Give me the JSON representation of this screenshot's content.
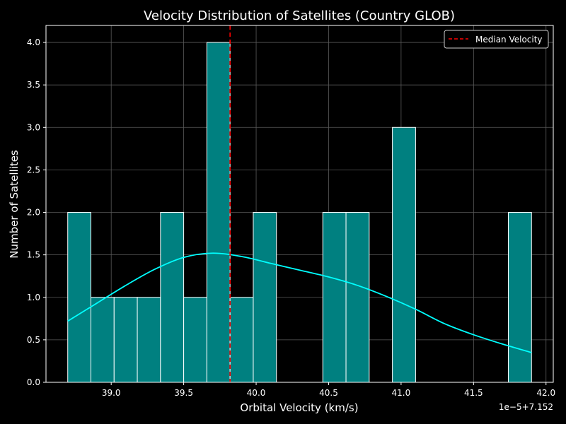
{
  "chart_data": {
    "type": "bar",
    "title": "Velocity Distribution of Satellites (Country GLOB)",
    "xlabel": "Orbital Velocity (km/s)",
    "ylabel": "Number of Satellites",
    "offset_text": "1e−5+7.152",
    "xlim": [
      38.55,
      42.05
    ],
    "ylim": [
      0,
      4.2
    ],
    "x_ticks": [
      "39.0",
      "39.5",
      "40.0",
      "40.5",
      "41.0",
      "41.5",
      "42.0"
    ],
    "y_ticks": [
      "0.0",
      "0.5",
      "1.0",
      "1.5",
      "2.0",
      "2.5",
      "3.0",
      "3.5",
      "4.0"
    ],
    "grid": true,
    "colors": {
      "background": "#000000",
      "bar_fill": "#008080",
      "bar_edge": "#ffffff",
      "kde": "#00ffff",
      "median": "#ff0000",
      "grid": "#5a5a5a"
    },
    "bins": [
      {
        "x0": 38.7,
        "x1": 38.86,
        "count": 2
      },
      {
        "x0": 38.86,
        "x1": 39.02,
        "count": 1
      },
      {
        "x0": 39.02,
        "x1": 39.18,
        "count": 1
      },
      {
        "x0": 39.18,
        "x1": 39.34,
        "count": 1
      },
      {
        "x0": 39.34,
        "x1": 39.5,
        "count": 2
      },
      {
        "x0": 39.5,
        "x1": 39.66,
        "count": 1
      },
      {
        "x0": 39.66,
        "x1": 39.82,
        "count": 4
      },
      {
        "x0": 39.82,
        "x1": 39.98,
        "count": 1
      },
      {
        "x0": 39.98,
        "x1": 40.14,
        "count": 2
      },
      {
        "x0": 40.14,
        "x1": 40.3,
        "count": 0
      },
      {
        "x0": 40.3,
        "x1": 40.46,
        "count": 0
      },
      {
        "x0": 40.46,
        "x1": 40.62,
        "count": 2
      },
      {
        "x0": 40.62,
        "x1": 40.78,
        "count": 2
      },
      {
        "x0": 40.78,
        "x1": 40.94,
        "count": 0
      },
      {
        "x0": 40.94,
        "x1": 41.1,
        "count": 3
      },
      {
        "x0": 41.1,
        "x1": 41.26,
        "count": 0
      },
      {
        "x0": 41.26,
        "x1": 41.42,
        "count": 0
      },
      {
        "x0": 41.42,
        "x1": 41.58,
        "count": 0
      },
      {
        "x0": 41.58,
        "x1": 41.74,
        "count": 0
      },
      {
        "x0": 41.74,
        "x1": 41.9,
        "count": 2
      }
    ],
    "kde": {
      "x": [
        38.7,
        38.9,
        39.1,
        39.3,
        39.5,
        39.7,
        39.9,
        40.1,
        40.3,
        40.5,
        40.7,
        40.9,
        41.1,
        41.3,
        41.5,
        41.7,
        41.9
      ],
      "y": [
        0.72,
        0.93,
        1.14,
        1.33,
        1.47,
        1.52,
        1.48,
        1.4,
        1.32,
        1.24,
        1.14,
        1.01,
        0.86,
        0.69,
        0.56,
        0.45,
        0.35
      ]
    },
    "median": 39.82,
    "legend": {
      "position": "top-right",
      "label": "Median Velocity"
    }
  }
}
